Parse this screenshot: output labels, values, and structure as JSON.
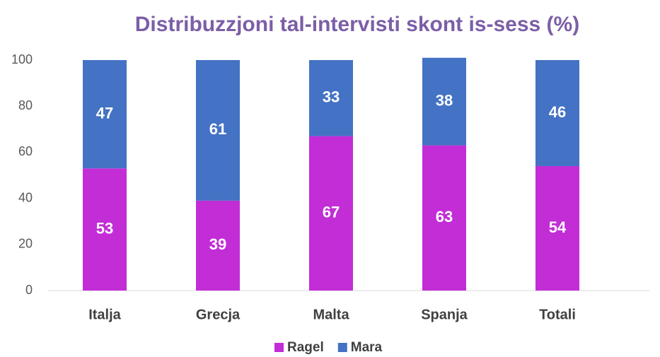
{
  "chart_data": {
    "type": "bar",
    "stacked": true,
    "title": "Distribuzzjoni tal-intervisti skont is-sess (%)",
    "categories": [
      "Italja",
      "Grecja",
      "Malta",
      "Spanja",
      "Totali"
    ],
    "series": [
      {
        "name": "Ragel",
        "color": "#c22dd6",
        "values": [
          53,
          39,
          67,
          63,
          54
        ]
      },
      {
        "name": "Mara",
        "color": "#4472c4",
        "values": [
          47,
          61,
          33,
          38,
          46
        ]
      }
    ],
    "ylim": [
      0,
      100
    ],
    "yticks": [
      0,
      20,
      40,
      60,
      80,
      100
    ],
    "grid": false,
    "legend": "bottom"
  }
}
